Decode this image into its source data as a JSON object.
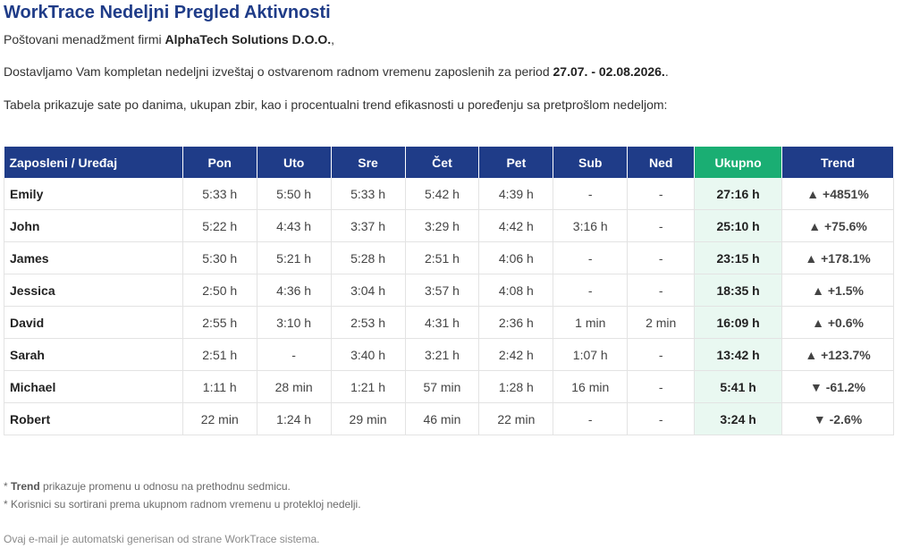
{
  "email": {
    "title": "WorkTrace Nedeljni Pregled Aktivnosti",
    "greeting_prefix": "Poštovani menadžment firmi ",
    "company": "AlphaTech Solutions D.O.O.",
    "greeting_suffix": ",",
    "intro_prefix": "Dostavljamo Vam kompletan nedeljni izveštaj o ostvarenom radnom vremenu zaposlenih za period ",
    "period": "27.07. - 02.08.2026.",
    "intro_suffix": ".",
    "description": "Tabela prikazuje sate po danima, ukupan zbir, kao i procentualni trend efikasnosti u poređenju sa pretprošlom nedeljom:"
  },
  "table": {
    "headers": [
      "Zaposleni / Uređaj",
      "Pon",
      "Uto",
      "Sre",
      "Čet",
      "Pet",
      "Sub",
      "Ned",
      "Ukupno",
      "Trend"
    ],
    "rows": [
      {
        "name": "Emily",
        "days": [
          "5:33 h",
          "5:50 h",
          "5:33 h",
          "5:42 h",
          "4:39 h",
          "-",
          "-"
        ],
        "total": "27:16 h",
        "trend": "▲ +4851%",
        "direction": "up"
      },
      {
        "name": "John",
        "days": [
          "5:22 h",
          "4:43 h",
          "3:37 h",
          "3:29 h",
          "4:42 h",
          "3:16 h",
          "-"
        ],
        "total": "25:10 h",
        "trend": "▲ +75.6%",
        "direction": "up"
      },
      {
        "name": "James",
        "days": [
          "5:30 h",
          "5:21 h",
          "5:28 h",
          "2:51 h",
          "4:06 h",
          "-",
          "-"
        ],
        "total": "23:15 h",
        "trend": "▲ +178.1%",
        "direction": "up"
      },
      {
        "name": "Jessica",
        "days": [
          "2:50 h",
          "4:36 h",
          "3:04 h",
          "3:57 h",
          "4:08 h",
          "-",
          "-"
        ],
        "total": "18:35 h",
        "trend": "▲ +1.5%",
        "direction": "up"
      },
      {
        "name": "David",
        "days": [
          "2:55 h",
          "3:10 h",
          "2:53 h",
          "4:31 h",
          "2:36 h",
          "1 min",
          "2 min"
        ],
        "total": "16:09 h",
        "trend": "▲ +0.6%",
        "direction": "up"
      },
      {
        "name": "Sarah",
        "days": [
          "2:51 h",
          "-",
          "3:40 h",
          "3:21 h",
          "2:42 h",
          "1:07 h",
          "-"
        ],
        "total": "13:42 h",
        "trend": "▲ +123.7%",
        "direction": "up"
      },
      {
        "name": "Michael",
        "days": [
          "1:11 h",
          "28 min",
          "1:21 h",
          "57 min",
          "1:28 h",
          "16 min",
          "-"
        ],
        "total": "5:41 h",
        "trend": "▼ -61.2%",
        "direction": "down"
      },
      {
        "name": "Robert",
        "days": [
          "22 min",
          "1:24 h",
          "29 min",
          "46 min",
          "22 min",
          "-",
          "-"
        ],
        "total": "3:24 h",
        "trend": "▼ -2.6%",
        "direction": "down"
      }
    ]
  },
  "notes": {
    "trend_prefix": "* ",
    "trend_label": "Trend",
    "trend_text": " prikazuje promenu u odnosu na prethodnu sedmicu.",
    "sort_note": "* Korisnici su sortirani prema ukupnom radnom vremenu u proteklој nedelji."
  },
  "footer": "Ovaj e-mail je automatski generisan od strane WorkTrace sistema.",
  "colors": {
    "header": "#1f3c88",
    "total_header": "#1aae73",
    "up": "#1aae73",
    "down": "#e03131"
  }
}
